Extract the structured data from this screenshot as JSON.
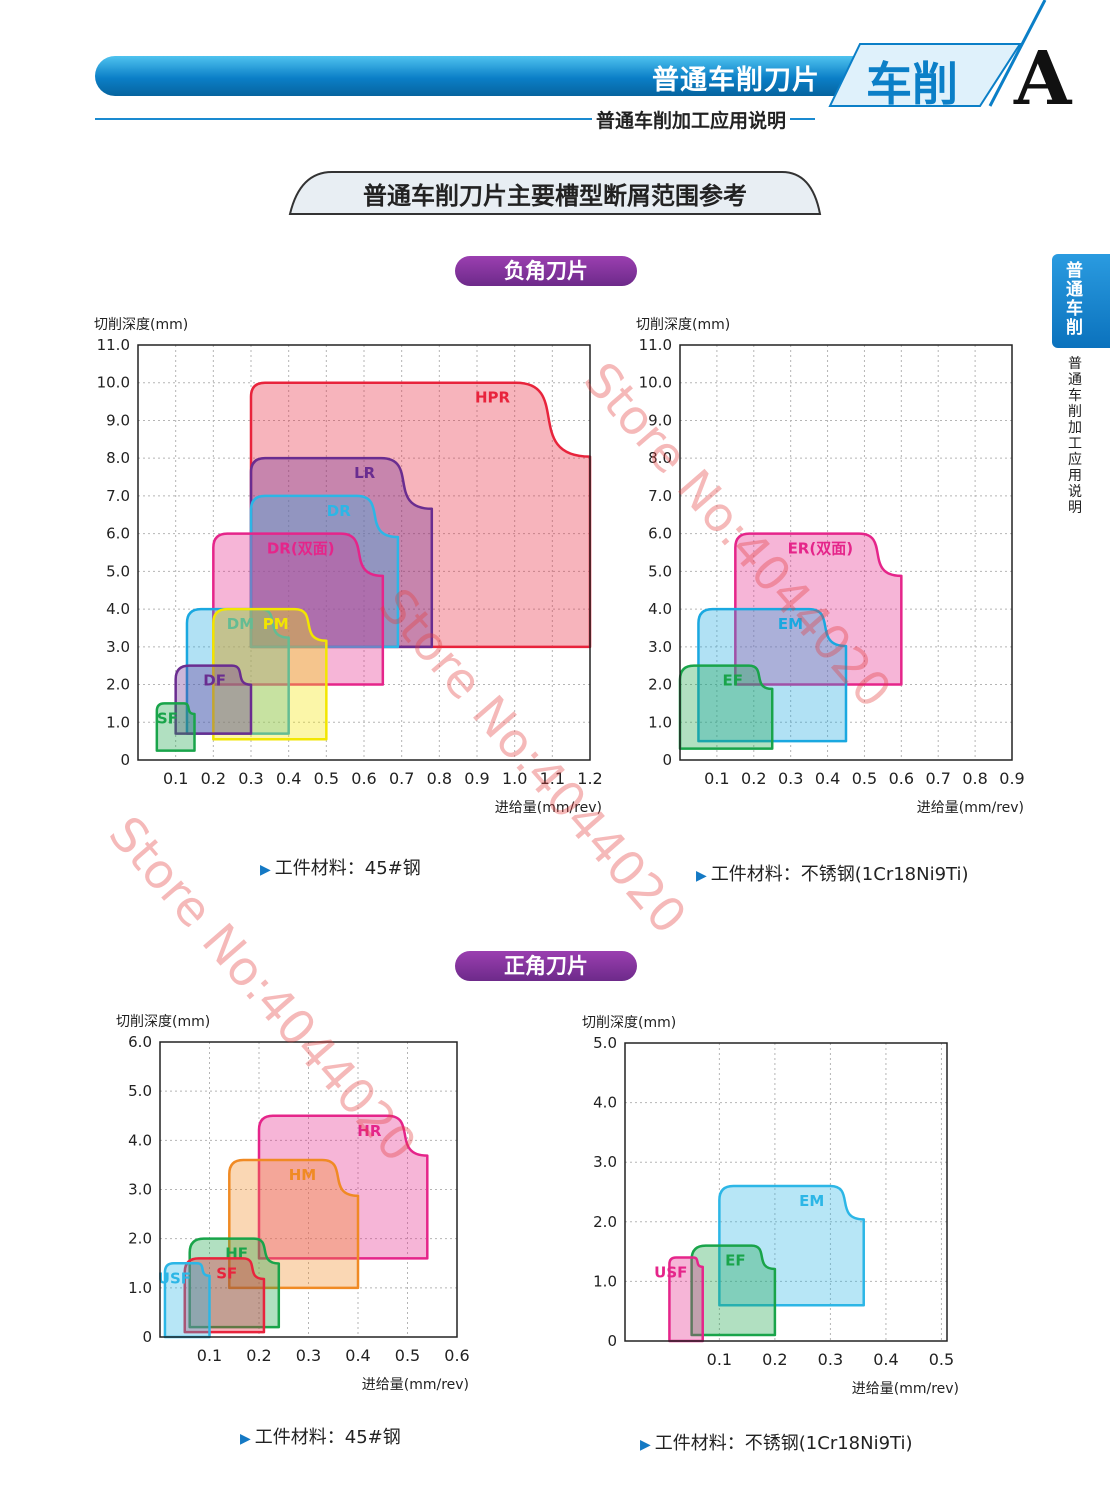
{
  "header": {
    "title": "普通车削刀片",
    "subtitle": "普通车削加工应用说明",
    "tab_cn": "车削",
    "tab_letter": "A"
  },
  "section_title": "普通车削刀片主要槽型断屑范围参考",
  "side_tab": {
    "label": "普通车削",
    "sub": "普通车削加工应用说明"
  },
  "groups": {
    "negative": "负角刀片",
    "positive": "正角刀片"
  },
  "materials": {
    "m1": "工件材料：45#钢",
    "m2": "工件材料：不锈钢(1Cr18Ni9Ti)",
    "m3": "工件材料：45#钢",
    "m4": "工件材料：不锈钢(1Cr18Ni9Ti)"
  },
  "watermark": "Store No:4044020",
  "colors": {
    "header_blue": "#0b7fc7",
    "pill_purple": "#7d2f98"
  },
  "chart_data": [
    {
      "type": "area",
      "xlabel": "进给量(mm/rev)",
      "ylabel": "切削深度(mm)",
      "xlim": [
        0,
        1.2
      ],
      "ylim": [
        0,
        11
      ],
      "xticks": [
        "0.1",
        "0.2",
        "0.3",
        "0.4",
        "0.5",
        "0.6",
        "0.7",
        "0.8",
        "0.9",
        "1.0",
        "1.1",
        "1.2"
      ],
      "yticks": [
        "0",
        "1.0",
        "2.0",
        "3.0",
        "4.0",
        "5.0",
        "6.0",
        "7.0",
        "8.0",
        "9.0",
        "10.0",
        "11.0"
      ],
      "grid": true,
      "series": [
        {
          "name": "HPR",
          "x": [
            0.3,
            1.2
          ],
          "y": [
            3.0,
            10.0
          ],
          "color": "#e8243c"
        },
        {
          "name": "LR",
          "x": [
            0.3,
            0.78
          ],
          "y": [
            3.0,
            8.0
          ],
          "color": "#6a2d90"
        },
        {
          "name": "DR",
          "x": [
            0.3,
            0.69
          ],
          "y": [
            3.0,
            7.0
          ],
          "color": "#2cb6e6"
        },
        {
          "name": "DR(双面)",
          "x": [
            0.2,
            0.65
          ],
          "y": [
            2.0,
            6.0
          ],
          "color": "#e5258a"
        },
        {
          "name": "DM",
          "x": [
            0.13,
            0.4
          ],
          "y": [
            0.7,
            4.0
          ],
          "color": "#1aa8e0"
        },
        {
          "name": "PM",
          "x": [
            0.2,
            0.5
          ],
          "y": [
            0.55,
            4.0
          ],
          "color": "#f2e600"
        },
        {
          "name": "DF",
          "x": [
            0.1,
            0.3
          ],
          "y": [
            0.7,
            2.5
          ],
          "color": "#6a2d90"
        },
        {
          "name": "SF",
          "x": [
            0.05,
            0.15
          ],
          "y": [
            0.25,
            1.5
          ],
          "color": "#19a44a"
        }
      ]
    },
    {
      "type": "area",
      "xlabel": "进给量(mm/rev)",
      "ylabel": "切削深度(mm)",
      "xlim": [
        0,
        0.9
      ],
      "ylim": [
        0,
        11
      ],
      "xticks": [
        "0.1",
        "0.2",
        "0.3",
        "0.4",
        "0.5",
        "0.6",
        "0.7",
        "0.8",
        "0.9"
      ],
      "yticks": [
        "0",
        "1.0",
        "2.0",
        "3.0",
        "4.0",
        "5.0",
        "6.0",
        "7.0",
        "8.0",
        "9.0",
        "10.0",
        "11.0"
      ],
      "grid": true,
      "series": [
        {
          "name": "ER(双面)",
          "x": [
            0.15,
            0.6
          ],
          "y": [
            2.0,
            6.0
          ],
          "color": "#e5258a"
        },
        {
          "name": "EM",
          "x": [
            0.05,
            0.45
          ],
          "y": [
            0.5,
            4.0
          ],
          "color": "#1aa8e0"
        },
        {
          "name": "EF",
          "x": [
            0,
            0.25
          ],
          "y": [
            0.3,
            2.5
          ],
          "color": "#19a44a"
        }
      ]
    },
    {
      "type": "area",
      "xlabel": "进给量(mm/rev)",
      "ylabel": "切削深度(mm)",
      "xlim": [
        0,
        0.6
      ],
      "ylim": [
        0,
        6
      ],
      "xticks": [
        "0.1",
        "0.2",
        "0.3",
        "0.4",
        "0.5",
        "0.6"
      ],
      "yticks": [
        "0",
        "1.0",
        "2.0",
        "3.0",
        "4.0",
        "5.0",
        "6.0"
      ],
      "grid": true,
      "series": [
        {
          "name": "HR",
          "x": [
            0.2,
            0.54
          ],
          "y": [
            1.6,
            4.5
          ],
          "color": "#e5258a"
        },
        {
          "name": "HM",
          "x": [
            0.14,
            0.4
          ],
          "y": [
            1.0,
            3.6
          ],
          "color": "#f08a24"
        },
        {
          "name": "HF",
          "x": [
            0.06,
            0.24
          ],
          "y": [
            0.2,
            2.0
          ],
          "color": "#19a44a"
        },
        {
          "name": "SF",
          "x": [
            0.05,
            0.21
          ],
          "y": [
            0.1,
            1.6
          ],
          "color": "#e8243c"
        },
        {
          "name": "USF",
          "x": [
            0.01,
            0.1
          ],
          "y": [
            0.0,
            1.5
          ],
          "color": "#2cb6e6"
        }
      ]
    },
    {
      "type": "area",
      "xlabel": "进给量(mm/rev)",
      "ylabel": "切削深度(mm)",
      "xlim": [
        -0.07,
        0.51
      ],
      "ylim": [
        0,
        5
      ],
      "xticks": [
        "0.1",
        "0.2",
        "0.3",
        "0.4",
        "0.5"
      ],
      "yticks": [
        "0",
        "1.0",
        "2.0",
        "3.0",
        "4.0",
        "5.0"
      ],
      "grid": true,
      "series": [
        {
          "name": "EM",
          "x": [
            0.1,
            0.36
          ],
          "y": [
            0.6,
            2.6
          ],
          "color": "#2cb6e6"
        },
        {
          "name": "EF",
          "x": [
            0.05,
            0.2
          ],
          "y": [
            0.1,
            1.6
          ],
          "color": "#19a44a"
        },
        {
          "name": "USF",
          "x": [
            0.01,
            0.07
          ],
          "y": [
            0.0,
            1.4
          ],
          "color": "#e5258a"
        }
      ]
    }
  ]
}
